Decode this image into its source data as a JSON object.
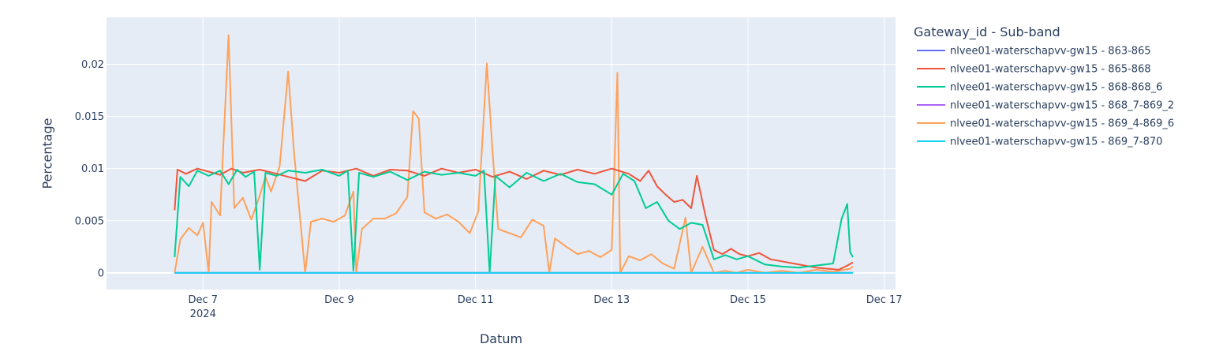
{
  "chart_data": {
    "type": "line",
    "xlabel": "Datum",
    "ylabel": "Percentage",
    "legend_title": "Gateway_id - Sub-band",
    "legend_position": "right",
    "grid": true,
    "x_range": [
      "2024-12-05T14:00",
      "2024-12-17T04:00"
    ],
    "ylim": [
      -0.0016,
      0.0245
    ],
    "x_ticks": [
      {
        "date": "2024-12-07",
        "label": "Dec 7",
        "sublabel": "2024"
      },
      {
        "date": "2024-12-09",
        "label": "Dec 9",
        "sublabel": ""
      },
      {
        "date": "2024-12-11",
        "label": "Dec 11",
        "sublabel": ""
      },
      {
        "date": "2024-12-13",
        "label": "Dec 13",
        "sublabel": ""
      },
      {
        "date": "2024-12-15",
        "label": "Dec 15",
        "sublabel": ""
      },
      {
        "date": "2024-12-17",
        "label": "Dec 17",
        "sublabel": ""
      }
    ],
    "y_ticks": [
      {
        "value": 0,
        "label": "0"
      },
      {
        "value": 0.005,
        "label": "0.005"
      },
      {
        "value": 0.01,
        "label": "0.01"
      },
      {
        "value": 0.015,
        "label": "0.015"
      },
      {
        "value": 0.02,
        "label": "0.02"
      }
    ],
    "series": [
      {
        "name": "nlvee01-waterschapvv-gw15 - 863-865",
        "color": "#636efa",
        "points": [
          [
            "2024-12-06T14:00",
            0
          ],
          [
            "2024-12-16T13:00",
            0
          ]
        ]
      },
      {
        "name": "nlvee01-waterschapvv-gw15 - 865-868",
        "color": "#ef553b",
        "points": [
          [
            "2024-12-06T14:00",
            0.006
          ],
          [
            "2024-12-06T15:00",
            0.0099
          ],
          [
            "2024-12-06T18:00",
            0.0095
          ],
          [
            "2024-12-06T22:00",
            0.01
          ],
          [
            "2024-12-07T02:00",
            0.0097
          ],
          [
            "2024-12-07T06:00",
            0.0094
          ],
          [
            "2024-12-07T10:00",
            0.01
          ],
          [
            "2024-12-07T14:00",
            0.0096
          ],
          [
            "2024-12-07T20:00",
            0.0099
          ],
          [
            "2024-12-08T02:00",
            0.0095
          ],
          [
            "2024-12-08T06:00",
            0.0092
          ],
          [
            "2024-12-08T12:00",
            0.0088
          ],
          [
            "2024-12-08T18:00",
            0.0098
          ],
          [
            "2024-12-09T00:00",
            0.0096
          ],
          [
            "2024-12-09T06:00",
            0.01
          ],
          [
            "2024-12-09T12:00",
            0.0093
          ],
          [
            "2024-12-09T18:00",
            0.0099
          ],
          [
            "2024-12-10T00:00",
            0.0098
          ],
          [
            "2024-12-10T06:00",
            0.0093
          ],
          [
            "2024-12-10T12:00",
            0.01
          ],
          [
            "2024-12-10T18:00",
            0.0096
          ],
          [
            "2024-12-11T00:00",
            0.0099
          ],
          [
            "2024-12-11T06:00",
            0.0092
          ],
          [
            "2024-12-11T12:00",
            0.0097
          ],
          [
            "2024-12-11T18:00",
            0.009
          ],
          [
            "2024-12-12T00:00",
            0.0098
          ],
          [
            "2024-12-12T06:00",
            0.0094
          ],
          [
            "2024-12-12T12:00",
            0.0099
          ],
          [
            "2024-12-12T18:00",
            0.0095
          ],
          [
            "2024-12-13T00:00",
            0.01
          ],
          [
            "2024-12-13T06:00",
            0.0095
          ],
          [
            "2024-12-13T10:00",
            0.0088
          ],
          [
            "2024-12-13T13:00",
            0.0098
          ],
          [
            "2024-12-13T16:00",
            0.0083
          ],
          [
            "2024-12-13T19:00",
            0.0075
          ],
          [
            "2024-12-13T22:00",
            0.0068
          ],
          [
            "2024-12-14T01:00",
            0.007
          ],
          [
            "2024-12-14T04:00",
            0.0062
          ],
          [
            "2024-12-14T06:00",
            0.0093
          ],
          [
            "2024-12-14T09:00",
            0.0055
          ],
          [
            "2024-12-14T12:00",
            0.0022
          ],
          [
            "2024-12-14T15:00",
            0.0018
          ],
          [
            "2024-12-14T18:00",
            0.0023
          ],
          [
            "2024-12-14T21:00",
            0.0018
          ],
          [
            "2024-12-15T00:00",
            0.0016
          ],
          [
            "2024-12-15T04:00",
            0.0019
          ],
          [
            "2024-12-15T08:00",
            0.0013
          ],
          [
            "2024-12-15T12:00",
            0.0011
          ],
          [
            "2024-12-15T16:00",
            0.0009
          ],
          [
            "2024-12-15T20:00",
            0.0007
          ],
          [
            "2024-12-16T00:00",
            0.0005
          ],
          [
            "2024-12-16T04:00",
            0.0004
          ],
          [
            "2024-12-16T08:00",
            0.0003
          ],
          [
            "2024-12-16T11:00",
            0.0007
          ],
          [
            "2024-12-16T13:00",
            0.001
          ]
        ]
      },
      {
        "name": "nlvee01-waterschapvv-gw15 - 868-868_6",
        "color": "#00cc96",
        "points": [
          [
            "2024-12-06T14:00",
            0.0015
          ],
          [
            "2024-12-06T16:00",
            0.0092
          ],
          [
            "2024-12-06T19:00",
            0.0083
          ],
          [
            "2024-12-06T22:00",
            0.0098
          ],
          [
            "2024-12-07T02:00",
            0.0093
          ],
          [
            "2024-12-07T06:00",
            0.0098
          ],
          [
            "2024-12-07T09:00",
            0.0085
          ],
          [
            "2024-12-07T12:00",
            0.0099
          ],
          [
            "2024-12-07T15:00",
            0.0092
          ],
          [
            "2024-12-07T18:00",
            0.0097
          ],
          [
            "2024-12-07T20:00",
            0.0003
          ],
          [
            "2024-12-07T22:00",
            0.0096
          ],
          [
            "2024-12-08T02:00",
            0.0093
          ],
          [
            "2024-12-08T06:00",
            0.0098
          ],
          [
            "2024-12-08T12:00",
            0.0096
          ],
          [
            "2024-12-08T18:00",
            0.0099
          ],
          [
            "2024-12-09T00:00",
            0.0093
          ],
          [
            "2024-12-09T03:00",
            0.0098
          ],
          [
            "2024-12-09T05:00",
            0.0002
          ],
          [
            "2024-12-09T07:00",
            0.0096
          ],
          [
            "2024-12-09T12:00",
            0.0092
          ],
          [
            "2024-12-09T18:00",
            0.0097
          ],
          [
            "2024-12-10T00:00",
            0.0089
          ],
          [
            "2024-12-10T06:00",
            0.0097
          ],
          [
            "2024-12-10T12:00",
            0.0094
          ],
          [
            "2024-12-10T18:00",
            0.0096
          ],
          [
            "2024-12-11T00:00",
            0.0093
          ],
          [
            "2024-12-11T03:00",
            0.0098
          ],
          [
            "2024-12-11T05:00",
            0.0
          ],
          [
            "2024-12-11T07:00",
            0.0093
          ],
          [
            "2024-12-11T12:00",
            0.0082
          ],
          [
            "2024-12-11T18:00",
            0.0096
          ],
          [
            "2024-12-12T00:00",
            0.0088
          ],
          [
            "2024-12-12T06:00",
            0.0095
          ],
          [
            "2024-12-12T12:00",
            0.0087
          ],
          [
            "2024-12-12T18:00",
            0.0085
          ],
          [
            "2024-12-13T00:00",
            0.0075
          ],
          [
            "2024-12-13T04:00",
            0.0095
          ],
          [
            "2024-12-13T08:00",
            0.0088
          ],
          [
            "2024-12-13T12:00",
            0.0062
          ],
          [
            "2024-12-13T16:00",
            0.0068
          ],
          [
            "2024-12-13T20:00",
            0.005
          ],
          [
            "2024-12-14T00:00",
            0.0042
          ],
          [
            "2024-12-14T04:00",
            0.0048
          ],
          [
            "2024-12-14T08:00",
            0.0046
          ],
          [
            "2024-12-14T12:00",
            0.0013
          ],
          [
            "2024-12-14T16:00",
            0.0017
          ],
          [
            "2024-12-14T20:00",
            0.0013
          ],
          [
            "2024-12-15T00:00",
            0.0016
          ],
          [
            "2024-12-15T06:00",
            0.0008
          ],
          [
            "2024-12-15T12:00",
            0.0006
          ],
          [
            "2024-12-15T18:00",
            0.0005
          ],
          [
            "2024-12-16T00:00",
            0.0007
          ],
          [
            "2024-12-16T06:00",
            0.0009
          ],
          [
            "2024-12-16T09:00",
            0.0052
          ],
          [
            "2024-12-16T11:00",
            0.0066
          ],
          [
            "2024-12-16T12:00",
            0.002
          ],
          [
            "2024-12-16T13:00",
            0.0015
          ]
        ]
      },
      {
        "name": "nlvee01-waterschapvv-gw15 - 868_7-869_2",
        "color": "#ab63fa",
        "points": [
          [
            "2024-12-06T14:00",
            0
          ],
          [
            "2024-12-16T13:00",
            0
          ]
        ]
      },
      {
        "name": "nlvee01-waterschapvv-gw15 - 869_4-869_6",
        "color": "#ffa15a",
        "points": [
          [
            "2024-12-06T14:00",
            0.0
          ],
          [
            "2024-12-06T16:00",
            0.0032
          ],
          [
            "2024-12-06T19:00",
            0.0043
          ],
          [
            "2024-12-06T22:00",
            0.0036
          ],
          [
            "2024-12-07T00:00",
            0.0048
          ],
          [
            "2024-12-07T02:00",
            0.0
          ],
          [
            "2024-12-07T03:00",
            0.0068
          ],
          [
            "2024-12-07T06:00",
            0.0055
          ],
          [
            "2024-12-07T09:00",
            0.0228
          ],
          [
            "2024-12-07T11:00",
            0.0062
          ],
          [
            "2024-12-07T14:00",
            0.0072
          ],
          [
            "2024-12-07T17:00",
            0.0051
          ],
          [
            "2024-12-07T20:00",
            0.0074
          ],
          [
            "2024-12-07T22:00",
            0.0092
          ],
          [
            "2024-12-08T00:00",
            0.0078
          ],
          [
            "2024-12-08T03:00",
            0.0102
          ],
          [
            "2024-12-08T06:00",
            0.0193
          ],
          [
            "2024-12-08T08:00",
            0.0118
          ],
          [
            "2024-12-08T10:00",
            0.0058
          ],
          [
            "2024-12-08T12:00",
            0.0
          ],
          [
            "2024-12-08T14:00",
            0.0049
          ],
          [
            "2024-12-08T18:00",
            0.0052
          ],
          [
            "2024-12-08T22:00",
            0.0049
          ],
          [
            "2024-12-09T02:00",
            0.0055
          ],
          [
            "2024-12-09T05:00",
            0.0078
          ],
          [
            "2024-12-09T06:00",
            0.0
          ],
          [
            "2024-12-09T08:00",
            0.0042
          ],
          [
            "2024-12-09T12:00",
            0.0052
          ],
          [
            "2024-12-09T16:00",
            0.0052
          ],
          [
            "2024-12-09T20:00",
            0.0057
          ],
          [
            "2024-12-10T00:00",
            0.0073
          ],
          [
            "2024-12-10T02:00",
            0.0155
          ],
          [
            "2024-12-10T04:00",
            0.0148
          ],
          [
            "2024-12-10T06:00",
            0.0058
          ],
          [
            "2024-12-10T10:00",
            0.0052
          ],
          [
            "2024-12-10T14:00",
            0.0056
          ],
          [
            "2024-12-10T18:00",
            0.0049
          ],
          [
            "2024-12-10T22:00",
            0.0038
          ],
          [
            "2024-12-11T01:00",
            0.0059
          ],
          [
            "2024-12-11T04:00",
            0.0201
          ],
          [
            "2024-12-11T06:00",
            0.0117
          ],
          [
            "2024-12-11T08:00",
            0.0042
          ],
          [
            "2024-12-11T12:00",
            0.0038
          ],
          [
            "2024-12-11T16:00",
            0.0034
          ],
          [
            "2024-12-11T20:00",
            0.0051
          ],
          [
            "2024-12-12T00:00",
            0.0045
          ],
          [
            "2024-12-12T02:00",
            0.0
          ],
          [
            "2024-12-12T04:00",
            0.0033
          ],
          [
            "2024-12-12T08:00",
            0.0025
          ],
          [
            "2024-12-12T12:00",
            0.0018
          ],
          [
            "2024-12-12T16:00",
            0.0021
          ],
          [
            "2024-12-12T20:00",
            0.0015
          ],
          [
            "2024-12-13T00:00",
            0.0022
          ],
          [
            "2024-12-13T02:00",
            0.0192
          ],
          [
            "2024-12-13T03:00",
            0.0
          ],
          [
            "2024-12-13T06:00",
            0.0016
          ],
          [
            "2024-12-13T10:00",
            0.0012
          ],
          [
            "2024-12-13T14:00",
            0.0018
          ],
          [
            "2024-12-13T18:00",
            0.0009
          ],
          [
            "2024-12-13T22:00",
            0.0004
          ],
          [
            "2024-12-14T02:00",
            0.0053
          ],
          [
            "2024-12-14T04:00",
            0.0
          ],
          [
            "2024-12-14T08:00",
            0.0025
          ],
          [
            "2024-12-14T12:00",
            0.0
          ],
          [
            "2024-12-14T16:00",
            0.0002
          ],
          [
            "2024-12-14T20:00",
            0.0
          ],
          [
            "2024-12-15T00:00",
            0.0003
          ],
          [
            "2024-12-15T06:00",
            0.0
          ],
          [
            "2024-12-15T12:00",
            0.0002
          ],
          [
            "2024-12-15T18:00",
            0.0
          ],
          [
            "2024-12-16T00:00",
            0.0003
          ],
          [
            "2024-12-16T06:00",
            0.0001
          ],
          [
            "2024-12-16T12:00",
            0.0004
          ],
          [
            "2024-12-16T13:00",
            0.0006
          ]
        ]
      },
      {
        "name": "nlvee01-waterschapvv-gw15 - 869_7-870",
        "color": "#19d3f3",
        "points": [
          [
            "2024-12-06T14:00",
            0
          ],
          [
            "2024-12-16T13:00",
            0
          ]
        ]
      }
    ]
  }
}
